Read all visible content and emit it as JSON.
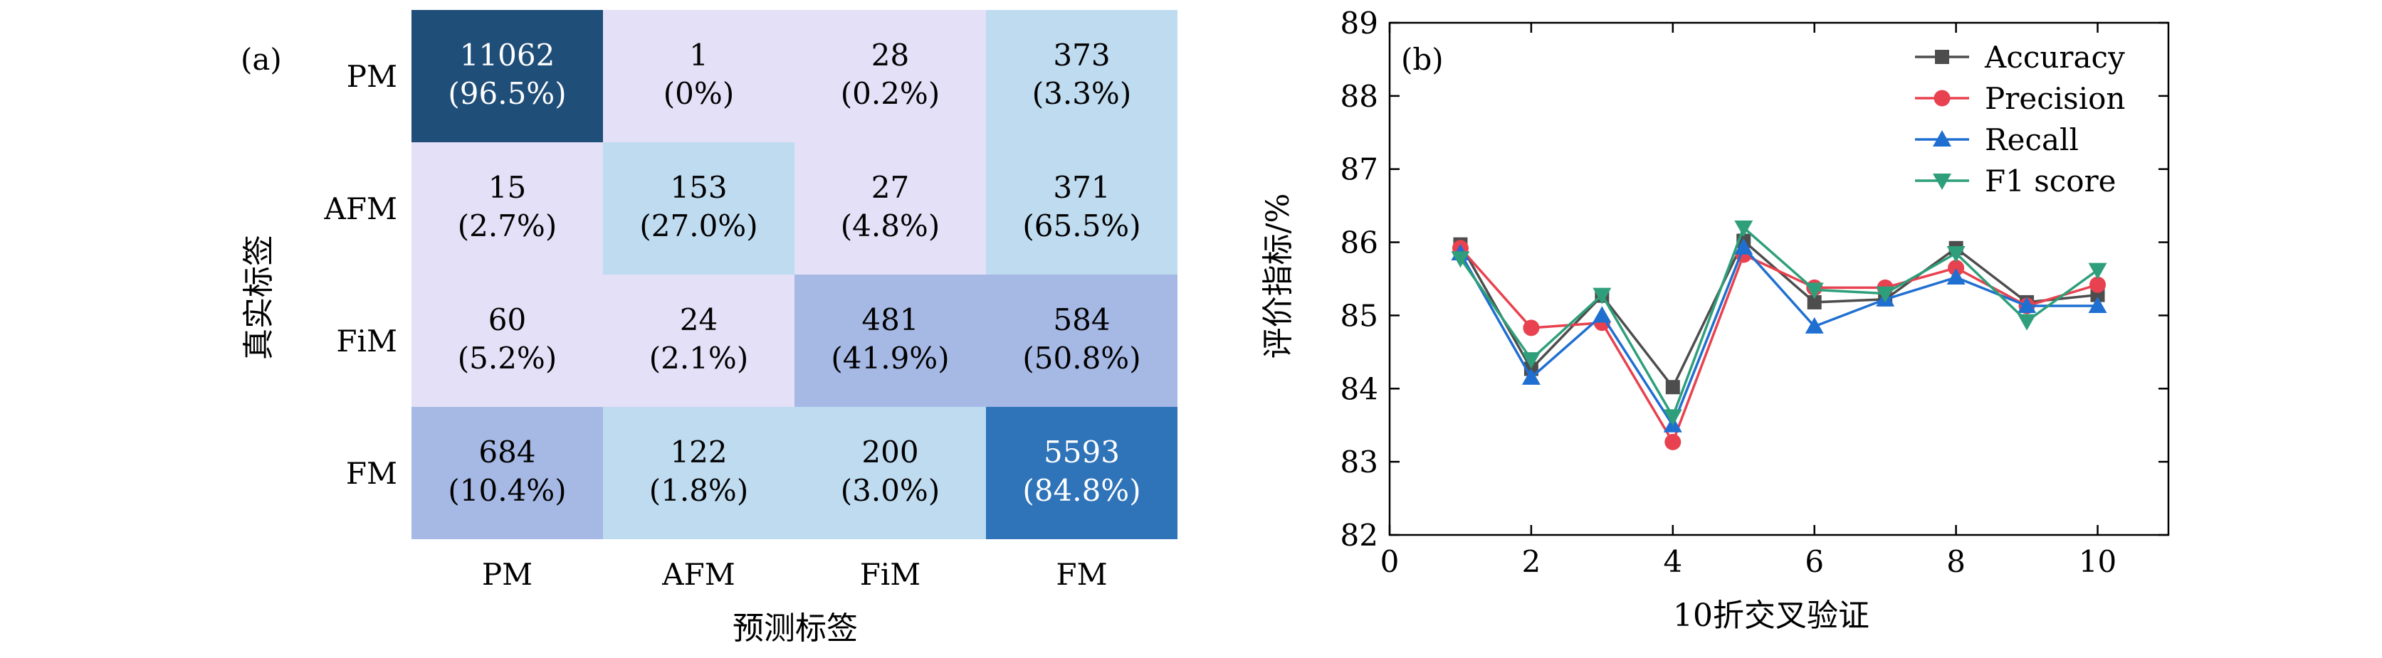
{
  "chart_data": [
    {
      "type": "heatmap",
      "panel_label": "(a)",
      "xlabel": "预测标签",
      "ylabel": "真实标签",
      "row_labels": [
        "PM",
        "AFM",
        "FiM",
        "FM"
      ],
      "col_labels": [
        "PM",
        "AFM",
        "FiM",
        "FM"
      ],
      "cells": [
        [
          {
            "count": "11062",
            "pct": "(96.5%)",
            "frac": 0.965
          },
          {
            "count": "1",
            "pct": "(0%)",
            "frac": 0.0
          },
          {
            "count": "28",
            "pct": "(0.2%)",
            "frac": 0.002
          },
          {
            "count": "373",
            "pct": "(3.3%)",
            "frac": 0.033
          }
        ],
        [
          {
            "count": "15",
            "pct": "(2.7%)",
            "frac": 0.027
          },
          {
            "count": "153",
            "pct": "(27.0%)",
            "frac": 0.27
          },
          {
            "count": "27",
            "pct": "(4.8%)",
            "frac": 0.048
          },
          {
            "count": "371",
            "pct": "(65.5%)",
            "frac": 0.655
          }
        ],
        [
          {
            "count": "60",
            "pct": "(5.2%)",
            "frac": 0.052
          },
          {
            "count": "24",
            "pct": "(2.1%)",
            "frac": 0.021
          },
          {
            "count": "481",
            "pct": "(41.9%)",
            "frac": 0.419
          },
          {
            "count": "584",
            "pct": "(50.8%)",
            "frac": 0.508
          }
        ],
        [
          {
            "count": "684",
            "pct": "(10.4%)",
            "frac": 0.104
          },
          {
            "count": "122",
            "pct": "(1.8%)",
            "frac": 0.018
          },
          {
            "count": "200",
            "pct": "(3.0%)",
            "frac": 0.03
          },
          {
            "count": "5593",
            "pct": "(84.8%)",
            "frac": 0.848
          }
        ]
      ],
      "cell_colors": [
        [
          "#1f4e79",
          "#e3e0f7",
          "#e3e0f7",
          "#bfdbf0"
        ],
        [
          "#e3e0f7",
          "#bfdbf0",
          "#e3e0f7",
          "#bfdbf0"
        ],
        [
          "#e3e0f7",
          "#e3e0f7",
          "#a6b9e5",
          "#a6b9e5"
        ],
        [
          "#a6b9e5",
          "#bfdbf0",
          "#bfdbf0",
          "#2f73b9"
        ]
      ]
    },
    {
      "type": "line",
      "panel_label": "(b)",
      "xlabel": "10折交叉验证",
      "ylabel": "评价指标/%",
      "xlim": [
        0,
        11
      ],
      "ylim": [
        82,
        89
      ],
      "xticks": [
        0,
        2,
        4,
        6,
        8,
        10
      ],
      "yticks": [
        82,
        83,
        84,
        85,
        86,
        87,
        88,
        89
      ],
      "legend_position": "top-right",
      "x": [
        1,
        2,
        3,
        4,
        5,
        6,
        7,
        8,
        9,
        10
      ],
      "series": [
        {
          "name": "Accuracy",
          "color": "#4d4d4d",
          "marker": "square",
          "values": [
            85.97,
            84.27,
            85.27,
            84.02,
            86.02,
            85.18,
            85.22,
            85.92,
            85.18,
            85.28
          ]
        },
        {
          "name": "Precision",
          "color": "#e8414f",
          "marker": "circle",
          "values": [
            85.92,
            84.83,
            84.9,
            83.27,
            85.83,
            85.38,
            85.38,
            85.65,
            85.13,
            85.42
          ]
        },
        {
          "name": "Recall",
          "color": "#1f6fd1",
          "marker": "triangle-up",
          "values": [
            85.85,
            84.15,
            85.0,
            83.5,
            85.93,
            84.85,
            85.22,
            85.52,
            85.13,
            85.13
          ]
        },
        {
          "name": "F1 score",
          "color": "#2e9f7a",
          "marker": "triangle-down",
          "values": [
            85.78,
            84.4,
            85.28,
            83.62,
            86.2,
            85.35,
            85.3,
            85.85,
            84.92,
            85.62
          ]
        }
      ]
    }
  ]
}
